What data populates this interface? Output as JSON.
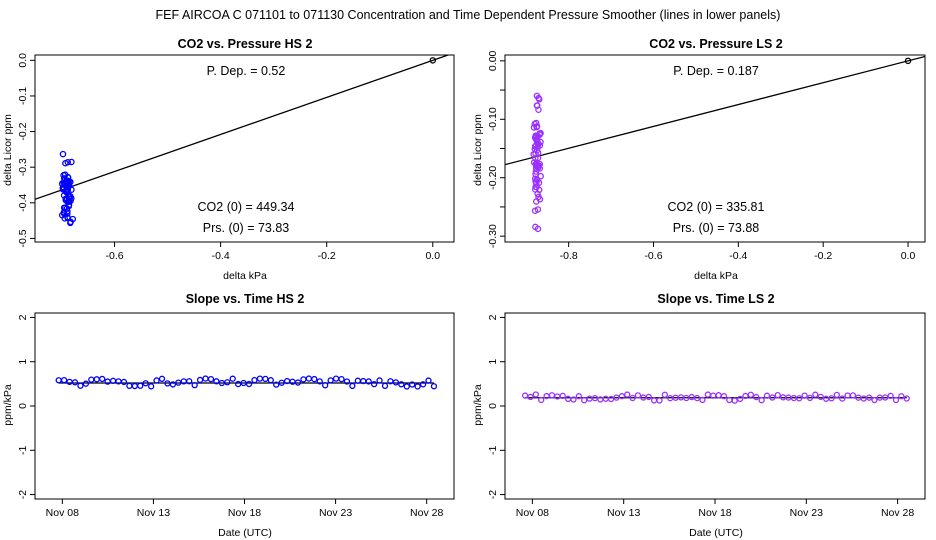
{
  "figure_title": "FEF   AIRCOA C   071101 to 071130   Concentration and Time Dependent Pressure Smoother (lines in lower panels)",
  "chart_data": [
    {
      "type": "scatter",
      "title": "CO2 vs. Pressure HS 2",
      "xlabel": "delta kPa",
      "ylabel": "delta Licor ppm",
      "xlim": [
        -0.75,
        0.04
      ],
      "ylim": [
        -0.51,
        0.015
      ],
      "xticks": [
        -0.6,
        -0.4,
        -0.2,
        0.0
      ],
      "xtick_labels": [
        "-0.6",
        "-0.4",
        "-0.2",
        "0.0"
      ],
      "yticks": [
        0.0,
        -0.1,
        -0.2,
        -0.3,
        -0.4,
        -0.5
      ],
      "ytick_labels": [
        "0.0",
        "-0.1",
        "-0.2",
        "-0.3",
        "-0.4",
        "-0.5"
      ],
      "color": "#0000ff",
      "fit_line": {
        "slope": 0.52,
        "intercept": 0.0
      },
      "annotations": {
        "pdep": "P. Dep. =  0.52",
        "co2": "CO2 (0) =  449.34",
        "prs": "Prs. (0) =  73.83"
      },
      "cloud": {
        "x_center": -0.69,
        "x_spread": 0.012,
        "y_min": -0.49,
        "y_max": -0.26,
        "count": 70
      },
      "origin_point": [
        0.0,
        0.0
      ]
    },
    {
      "type": "scatter",
      "title": "CO2 vs. Pressure LS 2",
      "xlabel": "delta kPa",
      "ylabel": "delta Licor ppm",
      "xlim": [
        -0.95,
        0.04
      ],
      "ylim": [
        -0.31,
        0.01
      ],
      "xticks": [
        -0.8,
        -0.6,
        -0.4,
        -0.2,
        0.0
      ],
      "xtick_labels": [
        "-0.8",
        "-0.6",
        "-0.4",
        "-0.2",
        "0.0"
      ],
      "yticks": [
        0.0,
        -0.1,
        -0.2,
        -0.3
      ],
      "ytick_labels": [
        "0.00",
        "-0.10",
        "-0.20",
        "-0.30"
      ],
      "extra_yticks": [
        -0.05,
        -0.15,
        -0.25
      ],
      "color": "#9b30ff",
      "fit_line": {
        "slope": 0.187,
        "intercept": 0.0
      },
      "annotations": {
        "pdep": "P. Dep. =  0.187",
        "co2": "CO2 (0) =  335.81",
        "prs": "Prs. (0) =  73.88"
      },
      "cloud": {
        "x_center": -0.875,
        "x_spread": 0.01,
        "y_min": -0.3,
        "y_max": -0.04,
        "count": 70
      },
      "origin_point": [
        0.0,
        0.0
      ]
    },
    {
      "type": "scatter",
      "title": "Slope vs. Time HS 2",
      "xlabel": "Date (UTC)",
      "ylabel": "ppm/kPa",
      "xlim": [
        6.5,
        29.5
      ],
      "ylim": [
        -2.1,
        2.1
      ],
      "xticks": [
        8,
        13,
        18,
        23,
        28
      ],
      "xtick_labels": [
        "Nov 08",
        "Nov 13",
        "Nov 18",
        "Nov 23",
        "Nov 28"
      ],
      "yticks": [
        -2,
        -1,
        0,
        1,
        2
      ],
      "ytick_labels": [
        "-2",
        "-1",
        "0",
        "1",
        "2"
      ],
      "color": "#0000ff",
      "smoother": 0.52,
      "series": {
        "start": 7.8,
        "end": 28.4,
        "count": 70,
        "mean": 0.53,
        "amp": 0.09
      }
    },
    {
      "type": "scatter",
      "title": "Slope vs. Time LS 2",
      "xlabel": "Date (UTC)",
      "ylabel": "ppm/kPa",
      "xlim": [
        6.5,
        29.5
      ],
      "ylim": [
        -2.1,
        2.1
      ],
      "xticks": [
        8,
        13,
        18,
        23,
        28
      ],
      "xtick_labels": [
        "Nov 08",
        "Nov 13",
        "Nov 18",
        "Nov 23",
        "Nov 28"
      ],
      "yticks": [
        -2,
        -1,
        0,
        1,
        2
      ],
      "ytick_labels": [
        "-2",
        "-1",
        "0",
        "1",
        "2"
      ],
      "color": "#9b30ff",
      "smoother": 0.187,
      "series": {
        "start": 7.6,
        "end": 28.5,
        "count": 72,
        "mean": 0.19,
        "amp": 0.07
      }
    }
  ]
}
